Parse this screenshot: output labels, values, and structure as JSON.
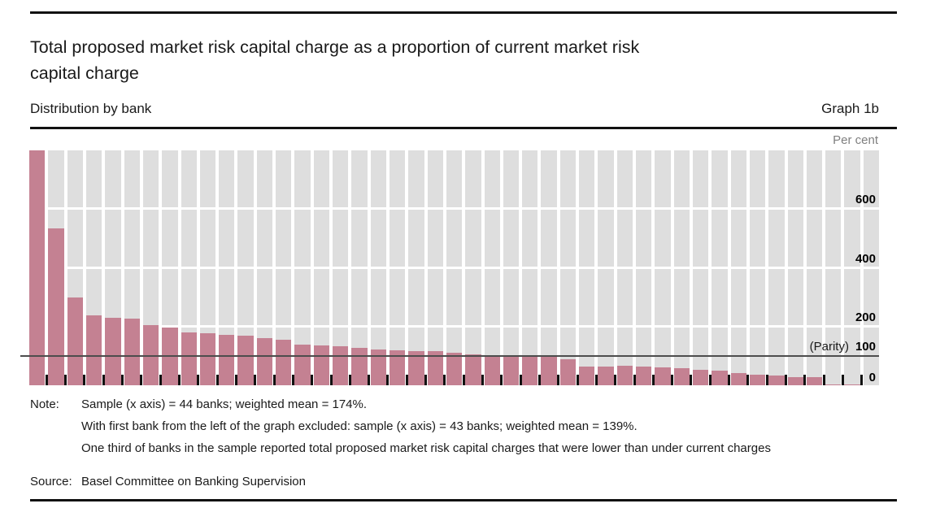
{
  "header": {
    "title_lines": [
      "Total proposed market risk capital charge as a proportion of current market risk",
      "capital charge"
    ],
    "subtitle": "Distribution by bank",
    "graph_label": "Graph 1b"
  },
  "chart_data": {
    "type": "bar",
    "title": "Total proposed market risk capital charge as a proportion of current market risk capital charge",
    "subtitle": "Distribution by bank",
    "unit_label": "Per cent",
    "xlabel": "",
    "ylabel": "Per cent",
    "ylim": [
      0,
      800
    ],
    "yticks": [
      0,
      100,
      200,
      400,
      600
    ],
    "ytick_labels": [
      "0",
      "100",
      "200",
      "400",
      "600"
    ],
    "gridlines_at": [
      200,
      400,
      600
    ],
    "parity_line_at": 100,
    "parity_label": "(Parity)",
    "grid": "on",
    "x_description": "44 banks sorted by value (no x tick labels shown)",
    "values": [
      800,
      535,
      300,
      238,
      230,
      226,
      205,
      196,
      180,
      178,
      171,
      170,
      161,
      154,
      138,
      135,
      134,
      128,
      122,
      119,
      116,
      115,
      112,
      105,
      103,
      102,
      100,
      100,
      89,
      65,
      65,
      66,
      64,
      60,
      58,
      52,
      50,
      42,
      36,
      33,
      27,
      29,
      3,
      2
    ]
  },
  "notes": {
    "label": "Note:",
    "lines": [
      "Sample (x axis) = 44 banks; weighted mean = 174%.",
      "With first bank from the left of the graph excluded: sample (x axis) = 43 banks; weighted mean = 139%.",
      "One third of banks in the sample reported total proposed market risk capital charges that were lower than under current charges"
    ]
  },
  "source": {
    "label": "Source:",
    "text": "Basel Committee on Banking Supervision"
  },
  "colors": {
    "bar": "#c48192",
    "plot_background": "#dedede",
    "gridline": "#ffffff",
    "parity_line": "#4d4d4d",
    "tick": "#111111",
    "unit_text": "#7f7f7f",
    "rule": "#111111"
  }
}
